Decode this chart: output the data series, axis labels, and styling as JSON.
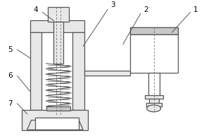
{
  "bg_color": "#ffffff",
  "line_color": "#555555",
  "gray_fill": "#c8c8c8",
  "light_gray": "#e8e8e8",
  "white": "#ffffff",
  "label_fontsize": 7.5,
  "lw": 0.9
}
